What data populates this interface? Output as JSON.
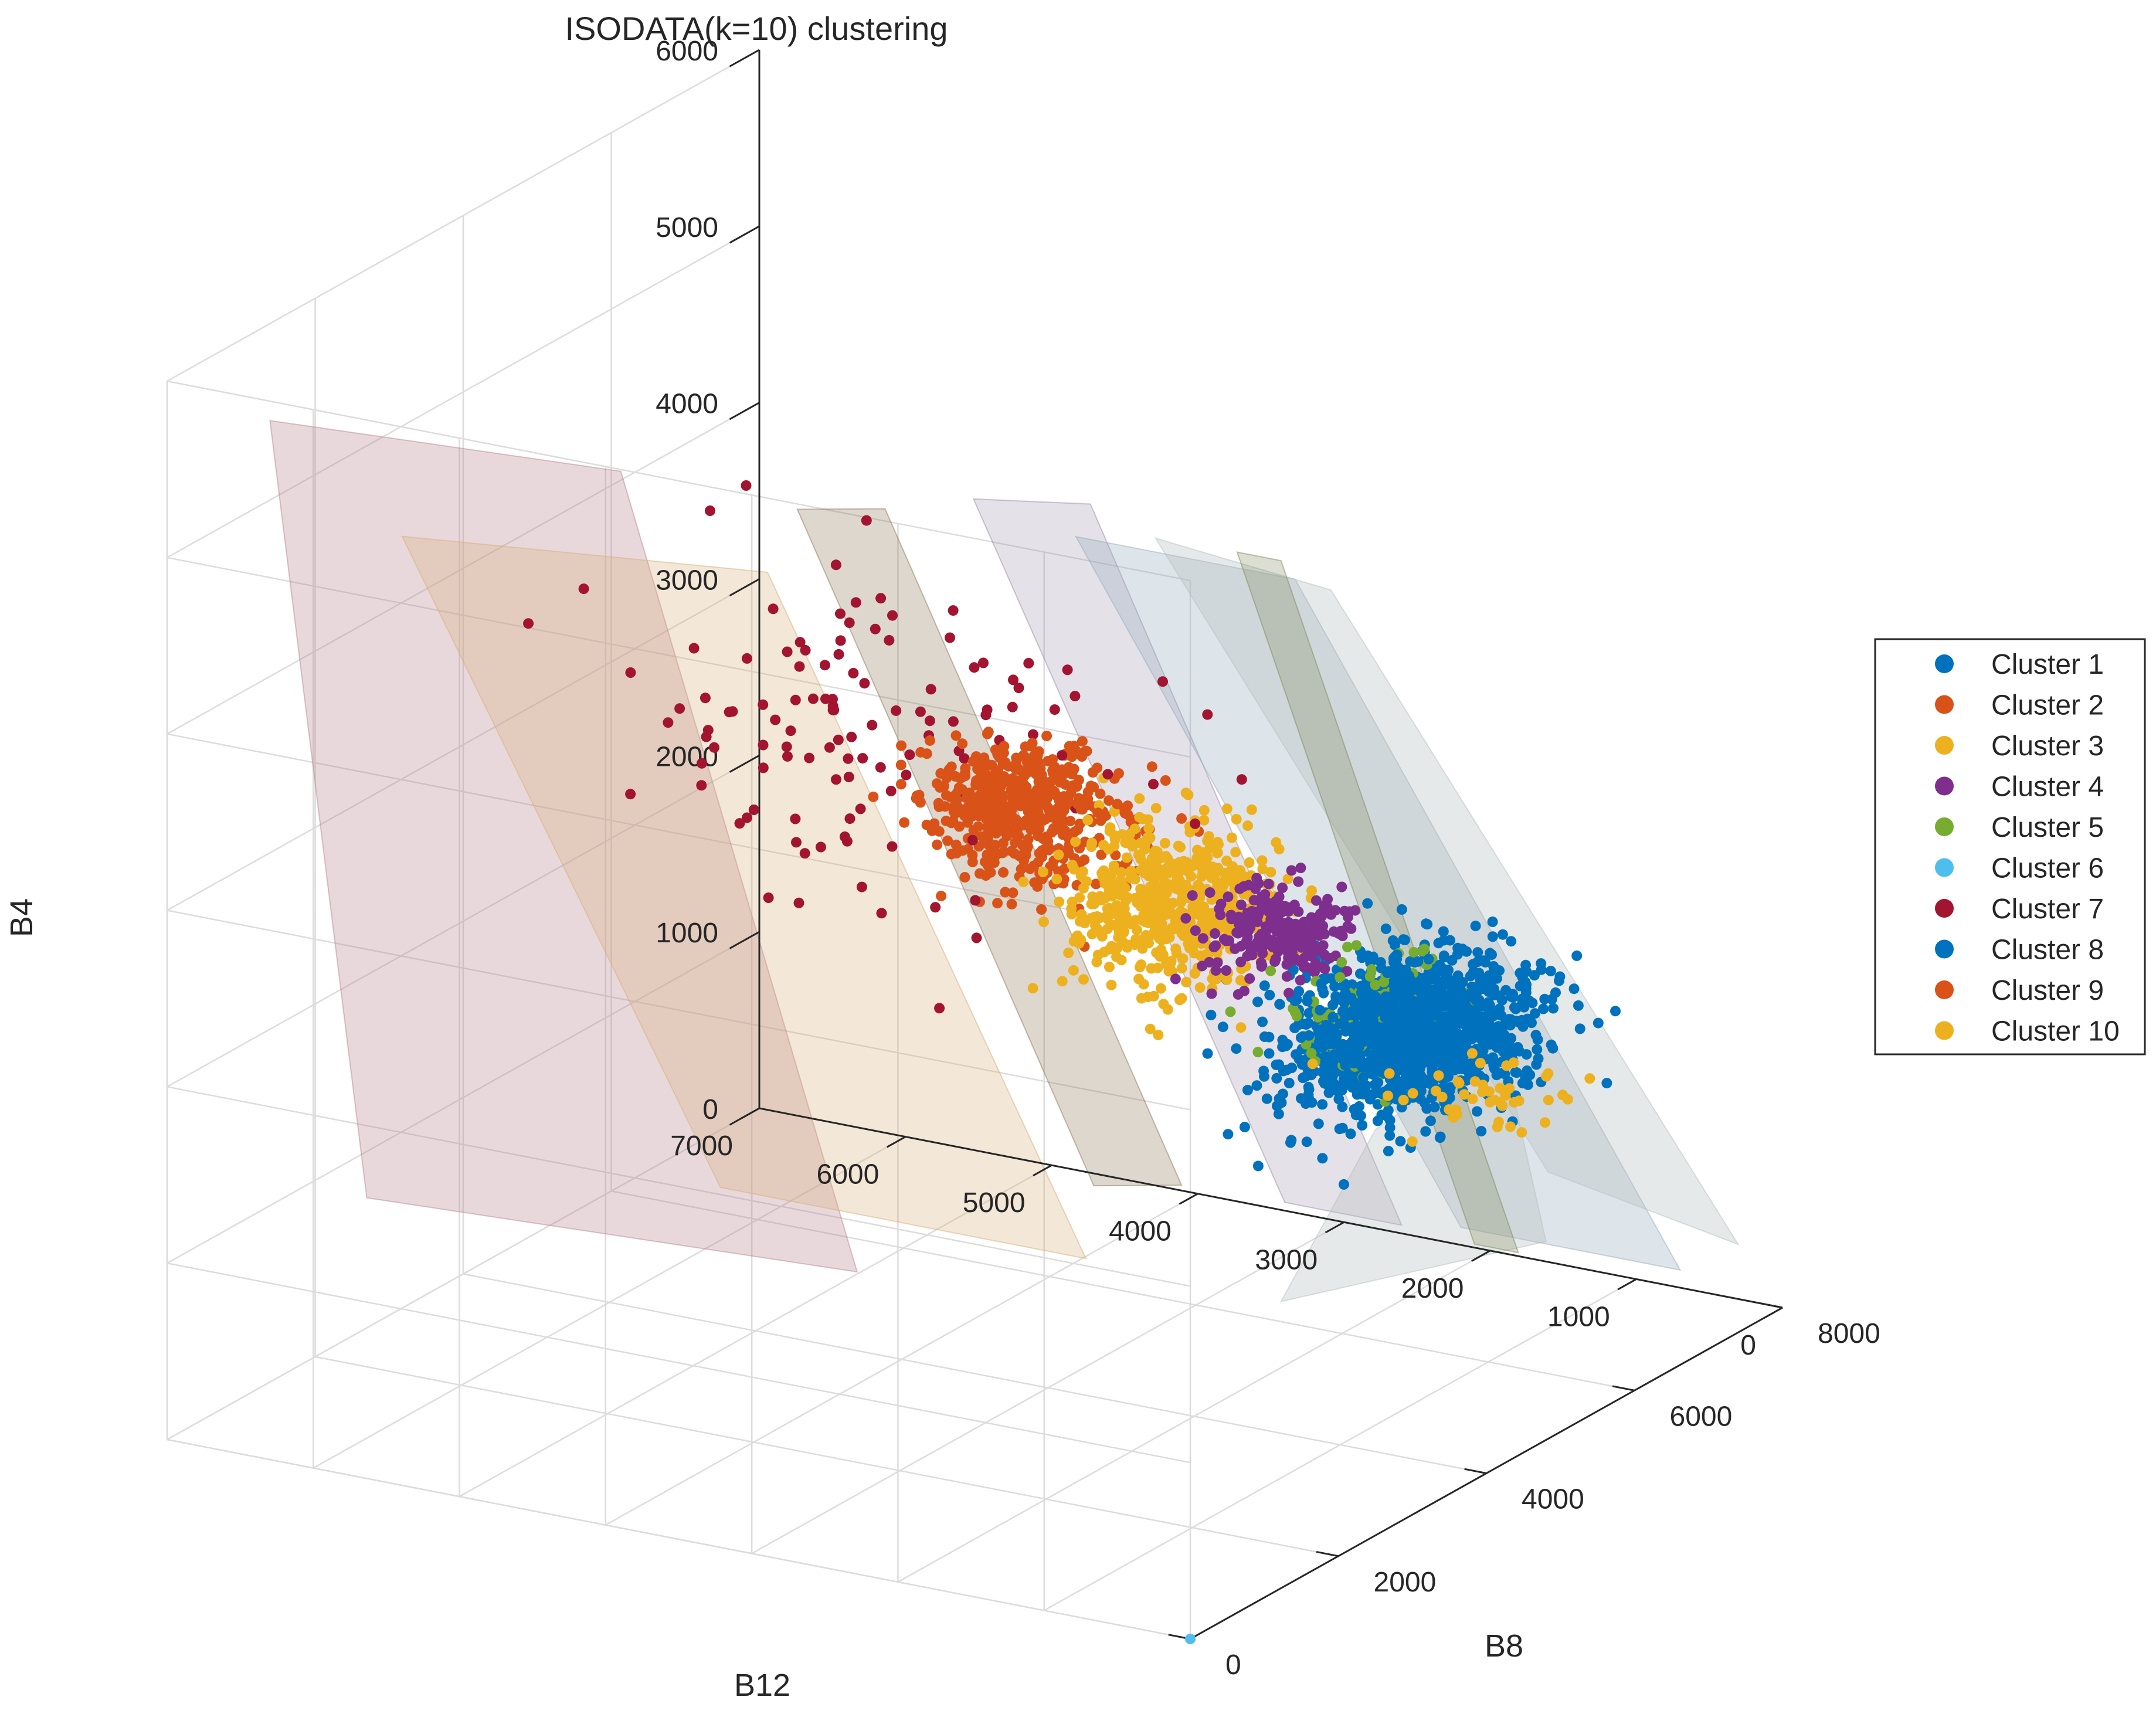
{
  "chart_data": {
    "type": "scatter",
    "title": "ISODATA(k=10) clustering",
    "xlabel": "B12",
    "ylabel": "B8",
    "zlabel": "B4",
    "xlim": [
      0,
      7000
    ],
    "ylim": [
      0,
      8000
    ],
    "zlim": [
      0,
      6000
    ],
    "x_ticks": [
      "0",
      "1000",
      "2000",
      "3000",
      "4000",
      "5000",
      "6000",
      "7000"
    ],
    "y_ticks": [
      "0",
      "2000",
      "4000",
      "6000",
      "8000"
    ],
    "z_ticks": [
      "0",
      "1000",
      "2000",
      "3000",
      "4000",
      "5000",
      "6000"
    ],
    "grid": true,
    "legend_position": "right",
    "series": [
      {
        "name": "Cluster 1",
        "color": "#0072bd",
        "center": [
          1350,
          5600,
          1900
        ],
        "spread": [
          350,
          600,
          180
        ],
        "n": 900
      },
      {
        "name": "Cluster 2",
        "color": "#d95319",
        "center": [
          3300,
          4400,
          3050
        ],
        "spread": [
          300,
          350,
          180
        ],
        "n": 300
      },
      {
        "name": "Cluster 3",
        "color": "#edb120",
        "center": [
          2600,
          4900,
          2600
        ],
        "spread": [
          320,
          300,
          220
        ],
        "n": 600
      },
      {
        "name": "Cluster 4",
        "color": "#7e2f8e",
        "center": [
          2050,
          5200,
          2450
        ],
        "spread": [
          220,
          250,
          130
        ],
        "n": 220
      },
      {
        "name": "Cluster 5",
        "color": "#77ac30",
        "center": [
          1250,
          5000,
          2150
        ],
        "spread": [
          220,
          350,
          130
        ],
        "n": 120
      },
      {
        "name": "Cluster 6",
        "color": "#4dbeee",
        "center": [
          0,
          0,
          0
        ],
        "spread": [
          0,
          0,
          0
        ],
        "n": 1
      },
      {
        "name": "Cluster 7",
        "color": "#a2142f",
        "center": [
          4000,
          3600,
          3650
        ],
        "spread": [
          800,
          600,
          450
        ],
        "n": 120
      },
      {
        "name": "Cluster 8",
        "color": "#0072bd",
        "center": [
          1400,
          5800,
          1850
        ],
        "spread": [
          250,
          350,
          150
        ],
        "n": 600
      },
      {
        "name": "Cluster 9",
        "color": "#d95319",
        "center": [
          3450,
          4300,
          3250
        ],
        "spread": [
          220,
          250,
          140
        ],
        "n": 250
      },
      {
        "name": "Cluster 10",
        "color": "#edb120",
        "center": [
          500,
          5000,
          1800
        ],
        "spread": [
          350,
          300,
          60
        ],
        "n": 45
      }
    ]
  }
}
